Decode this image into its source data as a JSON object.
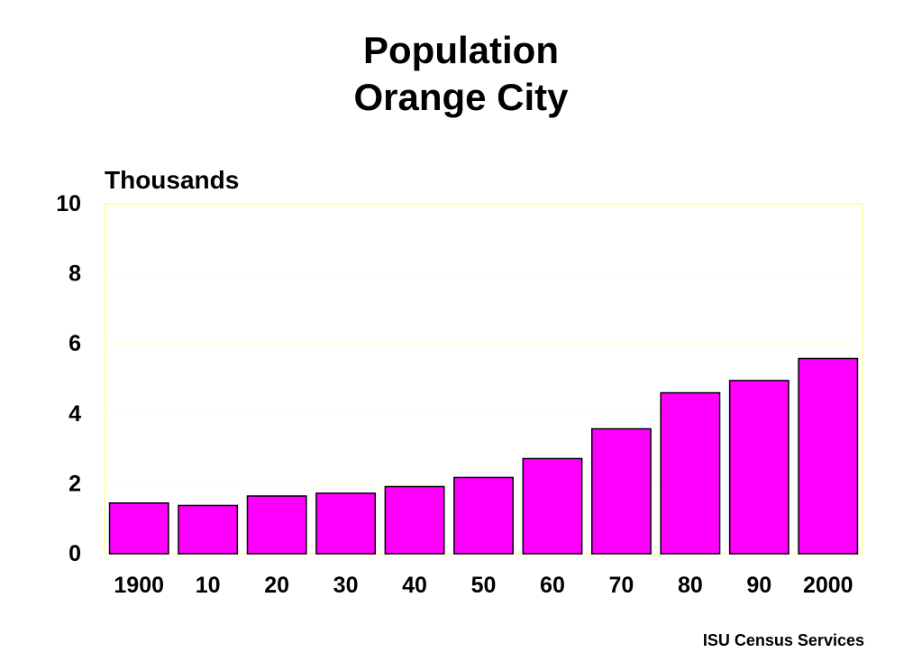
{
  "title_lines": [
    "Population",
    "Orange City"
  ],
  "source": "ISU Census Services",
  "colors": {
    "bar_fill": "#ff00ff",
    "bar_stroke": "#000000",
    "plot_border": "#ffff99",
    "gridline": "#ffffcc"
  },
  "chart_data": {
    "type": "bar",
    "title": "Population\nOrange City",
    "ylabel": "Thousands",
    "xlabel": "",
    "categories": [
      "1900",
      "10",
      "20",
      "30",
      "40",
      "50",
      "60",
      "70",
      "80",
      "90",
      "2000"
    ],
    "values": [
      1.45,
      1.38,
      1.65,
      1.73,
      1.92,
      2.18,
      2.72,
      3.57,
      4.6,
      4.95,
      5.58
    ],
    "ylim": [
      0,
      10
    ],
    "yticks": [
      0,
      2,
      4,
      6,
      8,
      10
    ],
    "grid": true,
    "legend": "none"
  }
}
